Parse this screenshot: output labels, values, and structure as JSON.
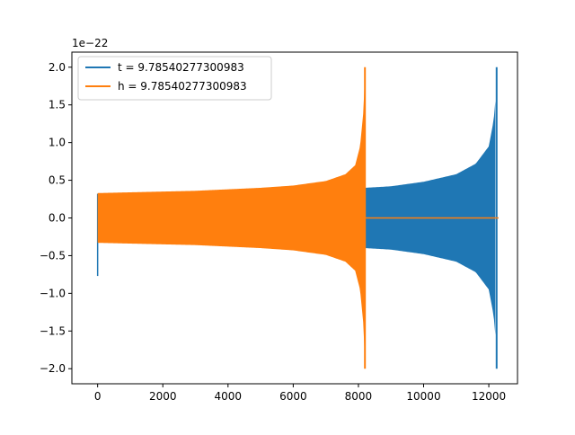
{
  "chart_data": {
    "type": "line",
    "title": "",
    "xlabel": "",
    "ylabel": "",
    "y_scale_label": "1e−22",
    "xlim": [
      -790,
      12880
    ],
    "ylim": [
      -2.2,
      2.2
    ],
    "x_ticks": [
      0,
      2000,
      4000,
      6000,
      8000,
      10000,
      12000
    ],
    "y_ticks": [
      -2.0,
      -1.5,
      -1.0,
      -0.5,
      0.0,
      0.5,
      1.0,
      1.5,
      2.0
    ],
    "x_tick_labels": [
      "0",
      "2000",
      "4000",
      "6000",
      "8000",
      "10000",
      "12000"
    ],
    "y_tick_labels": [
      "−2.0",
      "−1.5",
      "−1.0",
      "−0.5",
      "0.0",
      "0.5",
      "1.0",
      "1.5",
      "2.0"
    ],
    "grid": false,
    "legend_position": "top-left",
    "series": [
      {
        "name": "t = 9.78540277300983",
        "color": "#1f77b4",
        "kind": "chirp-envelope",
        "x_start": 0,
        "x_merge": 12200,
        "x_end": 12300,
        "start_min": -0.77,
        "start_amplitude": 0.32,
        "amplitude_at_merge_gap": 0.4,
        "peak_amplitude": 2.0,
        "envelope": [
          {
            "x": 8200,
            "a": 0.4
          },
          {
            "x": 9000,
            "a": 0.42
          },
          {
            "x": 10000,
            "a": 0.48
          },
          {
            "x": 11000,
            "a": 0.58
          },
          {
            "x": 11600,
            "a": 0.72
          },
          {
            "x": 12000,
            "a": 0.95
          },
          {
            "x": 12150,
            "a": 1.3
          },
          {
            "x": 12220,
            "a": 1.65
          },
          {
            "x": 12260,
            "a": 2.0
          }
        ]
      },
      {
        "name": "h = 9.78540277300983",
        "color": "#ff7f0e",
        "kind": "chirp-envelope",
        "x_start": 0,
        "x_merge": 8200,
        "x_end": 12300,
        "start_amplitude": 0.32,
        "peak_amplitude": 2.0,
        "envelope": [
          {
            "x": 0,
            "a": 0.33
          },
          {
            "x": 1000,
            "a": 0.34
          },
          {
            "x": 2000,
            "a": 0.35
          },
          {
            "x": 3000,
            "a": 0.36
          },
          {
            "x": 4000,
            "a": 0.38
          },
          {
            "x": 5000,
            "a": 0.4
          },
          {
            "x": 6000,
            "a": 0.43
          },
          {
            "x": 7000,
            "a": 0.49
          },
          {
            "x": 7600,
            "a": 0.58
          },
          {
            "x": 7900,
            "a": 0.7
          },
          {
            "x": 8050,
            "a": 0.95
          },
          {
            "x": 8150,
            "a": 1.4
          },
          {
            "x": 8210,
            "a": 2.0
          }
        ],
        "post_merge_value": 0.0
      }
    ]
  }
}
